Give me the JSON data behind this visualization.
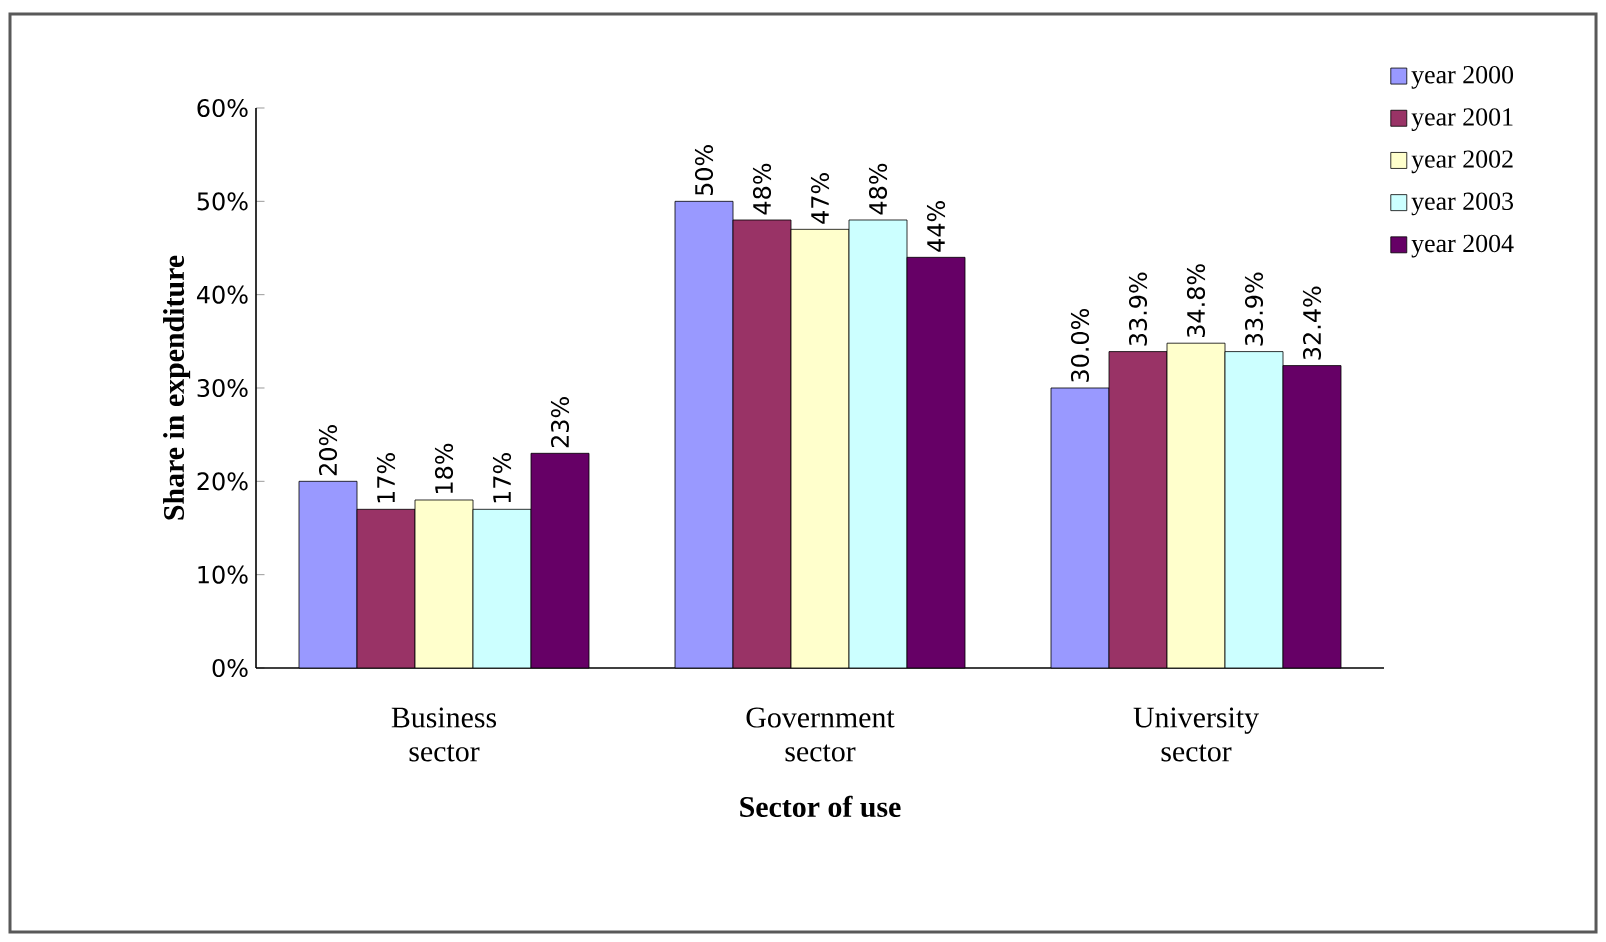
{
  "chart_data": {
    "type": "bar",
    "xlabel": "Sector of use",
    "ylabel": "Share in expenditure",
    "categories": [
      "Business sector",
      "Government sector",
      "University sector"
    ],
    "series": [
      {
        "name": "year 2000",
        "color": "#9999ff",
        "values": [
          20,
          50,
          30.0
        ],
        "value_labels": [
          "20%",
          "50%",
          "30.0%"
        ]
      },
      {
        "name": "year 2001",
        "color": "#993366",
        "values": [
          17,
          48,
          33.9
        ],
        "value_labels": [
          "17%",
          "48%",
          "33.9%"
        ]
      },
      {
        "name": "year 2002",
        "color": "#ffffcc",
        "values": [
          18,
          47,
          34.8
        ],
        "value_labels": [
          "18%",
          "47%",
          "34.8%"
        ]
      },
      {
        "name": "year 2003",
        "color": "#ccffff",
        "values": [
          17,
          48,
          33.9
        ],
        "value_labels": [
          "17%",
          "48%",
          "33.9%"
        ]
      },
      {
        "name": "year 2004",
        "color": "#660066",
        "values": [
          23,
          44,
          32.4
        ],
        "value_labels": [
          "23%",
          "44%",
          "32.4%"
        ]
      }
    ],
    "ylim": [
      0,
      60
    ],
    "yticks": [
      {
        "value": 0,
        "label": "0%"
      },
      {
        "value": 10,
        "label": "10%"
      },
      {
        "value": 20,
        "label": "20%"
      },
      {
        "value": 30,
        "label": "30%"
      },
      {
        "value": 40,
        "label": "40%"
      },
      {
        "value": 50,
        "label": "50%"
      },
      {
        "value": 60,
        "label": "60%"
      }
    ],
    "legend": "top right",
    "grid": false
  }
}
